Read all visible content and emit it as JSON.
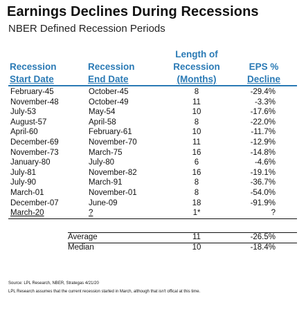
{
  "title": "Earnings Declines During Recessions",
  "subtitle": "NBER Defined Recession Periods",
  "columns": {
    "start_line1": "Recession",
    "start_line2": "Start Date",
    "end_line1": "Recession",
    "end_line2": "End Date",
    "length_line1": "Length of",
    "length_line2": "Recession",
    "length_line3": "(Months)",
    "eps_line1": "EPS %",
    "eps_line2": "Decline"
  },
  "rows": [
    {
      "start": "February-45",
      "end": "October-45",
      "months": "8",
      "eps": "-29.4%"
    },
    {
      "start": "November-48",
      "end": "October-49",
      "months": "11",
      "eps": "-3.3%"
    },
    {
      "start": "July-53",
      "end": "May-54",
      "months": "10",
      "eps": "-17.6%"
    },
    {
      "start": "August-57",
      "end": "April-58",
      "months": "8",
      "eps": "-22.0%"
    },
    {
      "start": "April-60",
      "end": "February-61",
      "months": "10",
      "eps": "-11.7%"
    },
    {
      "start": "December-69",
      "end": "November-70",
      "months": "11",
      "eps": "-12.9%"
    },
    {
      "start": "November-73",
      "end": "March-75",
      "months": "16",
      "eps": "-14.8%"
    },
    {
      "start": "January-80",
      "end": "July-80",
      "months": "6",
      "eps": "-4.6%"
    },
    {
      "start": "July-81",
      "end": "November-82",
      "months": "16",
      "eps": "-19.1%"
    },
    {
      "start": "July-90",
      "end": "March-91",
      "months": "8",
      "eps": "-36.7%"
    },
    {
      "start": "March-01",
      "end": "November-01",
      "months": "8",
      "eps": "-54.0%"
    },
    {
      "start": "December-07",
      "end": "June-09",
      "months": "18",
      "eps": "-91.9%"
    },
    {
      "start": "March-20",
      "end": "?",
      "months": "1*",
      "eps": "?"
    }
  ],
  "stats": [
    {
      "label": "Average",
      "months": "11",
      "eps": "-26.5%"
    },
    {
      "label": "Median",
      "months": "10",
      "eps": "-18.4%"
    }
  ],
  "source": "Source: LPL Research, NBER, Strategas 4/21/20",
  "note": "LPL Research assumes that the current recession started in March, although that isn't offical at this time.",
  "colors": {
    "header": "#2a7ab5",
    "rule": "#2a7ab5"
  }
}
